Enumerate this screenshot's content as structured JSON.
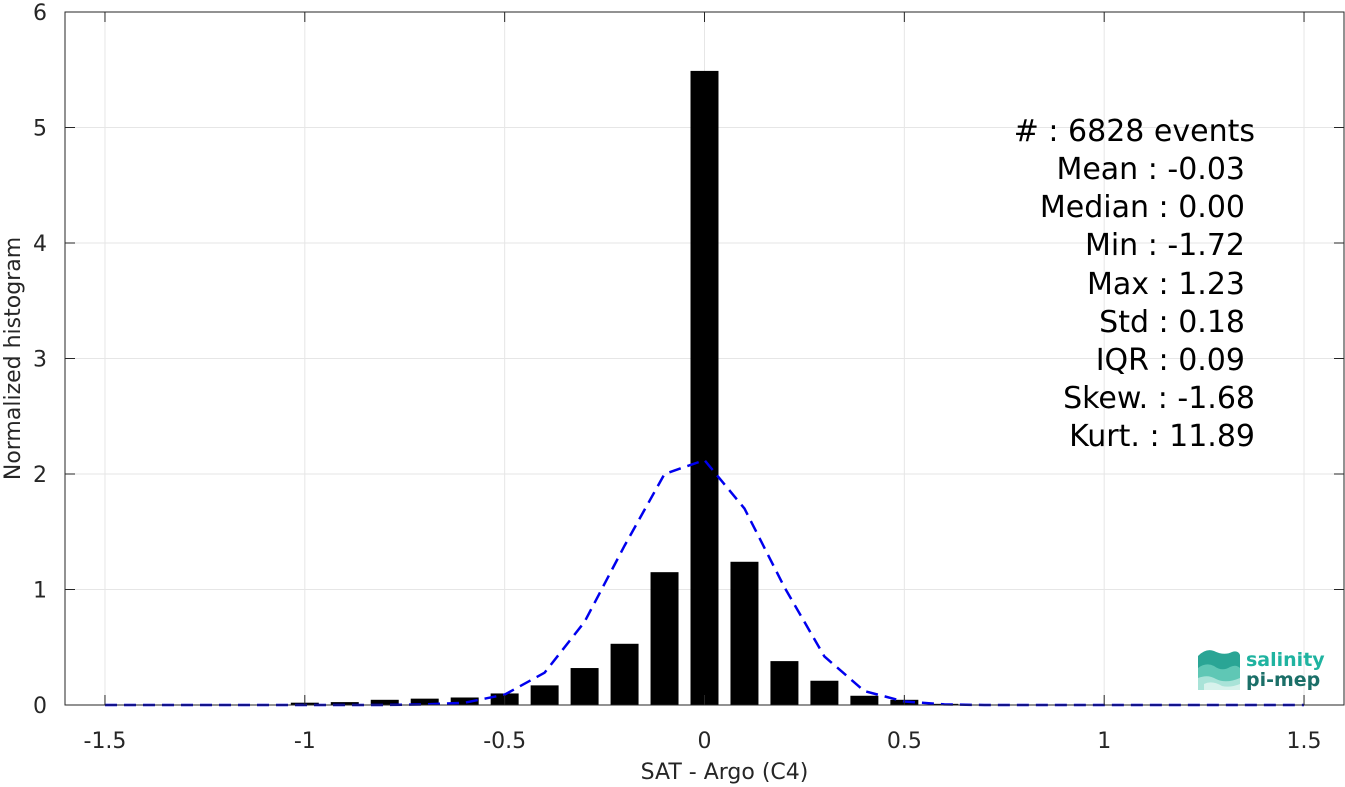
{
  "chart_data": {
    "type": "bar",
    "xlabel": "SAT - Argo (C4)",
    "ylabel": "Normalized histogram",
    "xlim": [
      -1.6,
      1.6
    ],
    "ylim": [
      0,
      6
    ],
    "grid": true,
    "x_ticks": [
      -1.5,
      -1,
      -0.5,
      0,
      0.5,
      1,
      1.5
    ],
    "x_tick_labels": [
      "-1.5",
      "-1",
      "-0.5",
      "0",
      "0.5",
      "1",
      "1.5"
    ],
    "y_ticks": [
      0,
      1,
      2,
      3,
      4,
      5,
      6
    ],
    "y_tick_labels": [
      "0",
      "1",
      "2",
      "3",
      "4",
      "5",
      "6"
    ],
    "bar_color": "#000000",
    "bar_width": 0.07,
    "bars": {
      "x": [
        -1.5,
        -1.4,
        -1.3,
        -1.2,
        -1.1,
        -1.0,
        -0.9,
        -0.8,
        -0.7,
        -0.6,
        -0.5,
        -0.4,
        -0.3,
        -0.2,
        -0.1,
        0.0,
        0.1,
        0.2,
        0.3,
        0.4,
        0.5,
        0.6,
        0.7
      ],
      "values": [
        0.002,
        0.004,
        0.004,
        0.004,
        0.004,
        0.02,
        0.025,
        0.045,
        0.055,
        0.065,
        0.1,
        0.17,
        0.32,
        0.53,
        1.15,
        5.49,
        1.24,
        0.38,
        0.21,
        0.08,
        0.045,
        0.01,
        0.004
      ]
    },
    "fit_curve": {
      "style": "dashed",
      "color": "#0000ee",
      "x": [
        -1.5,
        -1.4,
        -1.3,
        -1.2,
        -1.1,
        -1.0,
        -0.9,
        -0.8,
        -0.7,
        -0.6,
        -0.5,
        -0.4,
        -0.3,
        -0.2,
        -0.1,
        0.0,
        0.1,
        0.2,
        0.3,
        0.4,
        0.5,
        0.6,
        0.7,
        0.8,
        0.9,
        1.0,
        1.1,
        1.2,
        1.3,
        1.4,
        1.5
      ],
      "values": [
        0,
        0,
        0,
        0,
        0,
        0,
        0,
        0,
        0.005,
        0.02,
        0.09,
        0.28,
        0.72,
        1.38,
        2.0,
        2.12,
        1.7,
        1.02,
        0.42,
        0.12,
        0.03,
        0.005,
        0,
        0,
        0,
        0,
        0,
        0,
        0,
        0,
        0
      ]
    }
  },
  "stats": [
    "#  : 6828 events",
    "Mean : -0.03",
    "Median : 0.00",
    "Min : -1.72",
    "Max : 1.23",
    "Std : 0.18",
    "IQR : 0.09",
    "Skew. : -1.68",
    "Kurt. : 11.89"
  ],
  "logo": {
    "line1": "salinity",
    "line2": "pi-mep",
    "color1": "#1fb3a0",
    "color2": "#1b6f68"
  }
}
